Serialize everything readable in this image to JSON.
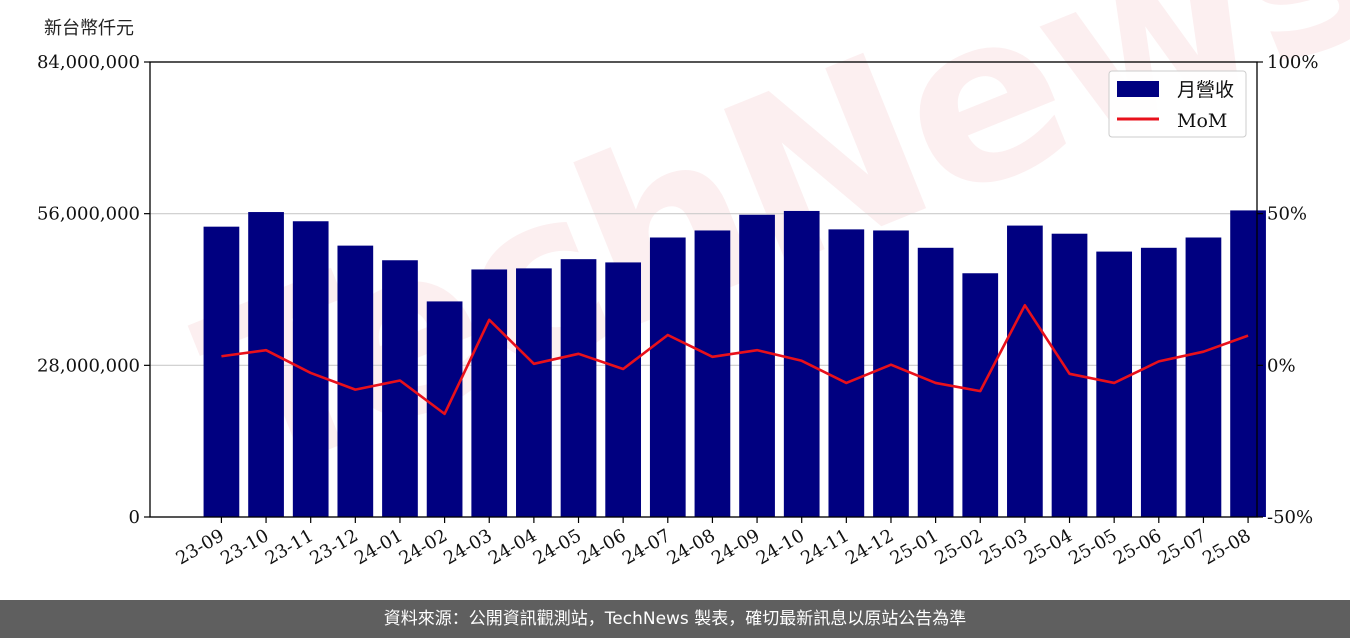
{
  "unit_label": "新台幣仟元",
  "watermark": "TechNews",
  "footer": "資料來源：公開資訊觀測站，TechNews 製表，確切最新訊息以原站公告為準",
  "colors": {
    "bar": "#000080",
    "line": "#e8101b",
    "grid": "#cccccc",
    "axis": "#000000",
    "footer_bg": "#5f5f5f"
  },
  "chart_data": {
    "type": "bar",
    "categories": [
      "23-09",
      "23-10",
      "23-11",
      "23-12",
      "24-01",
      "24-02",
      "24-03",
      "24-04",
      "24-05",
      "24-06",
      "24-07",
      "24-08",
      "24-09",
      "24-10",
      "24-11",
      "24-12",
      "25-01",
      "25-02",
      "25-03",
      "25-04",
      "25-05",
      "25-06",
      "25-07",
      "25-08"
    ],
    "series": [
      {
        "name": "月營收",
        "type": "bar",
        "axis": "left",
        "values": [
          53600000,
          56300000,
          54600000,
          50100000,
          47400000,
          39800000,
          45700000,
          45900000,
          47600000,
          47000000,
          51600000,
          52900000,
          55800000,
          56500000,
          53100000,
          52900000,
          49700000,
          45000000,
          53800000,
          52300000,
          49000000,
          49700000,
          51600000,
          56600000
        ]
      },
      {
        "name": "MoM",
        "type": "line",
        "axis": "right",
        "values": [
          3.0,
          5.0,
          -2.5,
          -8.0,
          -5.0,
          -16.0,
          15.0,
          0.5,
          3.8,
          -1.2,
          10.0,
          2.8,
          5.0,
          1.5,
          -5.8,
          0.2,
          -5.8,
          -8.5,
          19.8,
          -2.8,
          -5.8,
          1.3,
          4.5,
          9.8
        ]
      }
    ],
    "yticks_left": [
      "0",
      "28,000,000",
      "56,000,000",
      "84,000,000"
    ],
    "ylim_left": [
      0,
      84000000
    ],
    "yticks_right": [
      "-50%",
      "0%",
      "50%",
      "100%"
    ],
    "ylim_right": [
      -50,
      100
    ],
    "grid": "horizontal",
    "legend_position": "top-right"
  }
}
